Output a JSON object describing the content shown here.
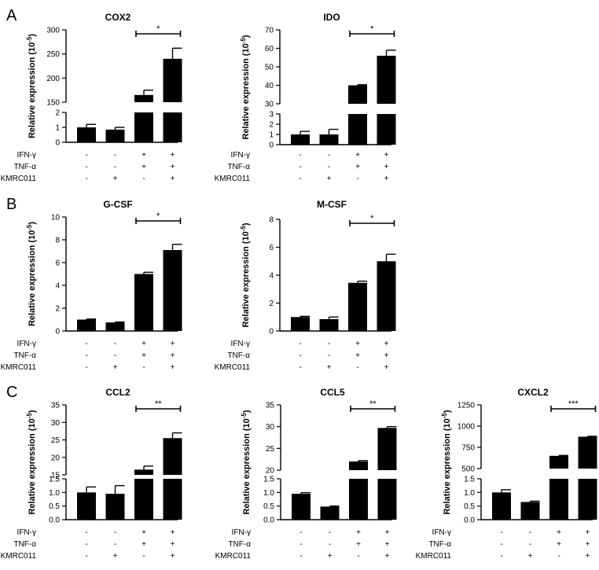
{
  "figure": {
    "sample_labels": [
      "IFN-γ",
      "TNF-α",
      "KMRC011"
    ],
    "conditions": [
      [
        "-",
        "-",
        "-"
      ],
      [
        "-",
        "-",
        "+"
      ],
      [
        "+",
        "+",
        "-"
      ],
      [
        "+",
        "+",
        "+"
      ]
    ],
    "panels": [
      {
        "letter": "A"
      },
      {
        "letter": "B"
      },
      {
        "letter": "C"
      }
    ],
    "ylabel_text": "Relative expression (10",
    "ylabel_exp": "-5",
    "ylabel_close": ")"
  },
  "chart_data": [
    {
      "type": "bar",
      "panel": "A",
      "title": "COX2",
      "categories": [
        "control",
        "KMRC011",
        "IFN-γ+TNF-α",
        "IFN-γ+TNF-α+KMRC011"
      ],
      "values": [
        1.0,
        0.85,
        165,
        240
      ],
      "errors": [
        0.2,
        0.15,
        10,
        22
      ],
      "ylabel": "Relative expression (10-5)",
      "split_axis": true,
      "segments": [
        {
          "range": [
            0,
            2
          ],
          "ticks": [
            "0",
            "1",
            "2"
          ]
        },
        {
          "range": [
            150,
            300
          ],
          "ticks": [
            "150",
            "200",
            "250",
            "300"
          ]
        }
      ],
      "significance": {
        "between": [
          2,
          3
        ],
        "label": "*"
      }
    },
    {
      "type": "bar",
      "panel": "A",
      "title": "IDO",
      "categories": [
        "control",
        "KMRC011",
        "IFN-γ+TNF-α",
        "IFN-γ+TNF-α+KMRC011"
      ],
      "values": [
        1.0,
        1.0,
        40,
        56
      ],
      "errors": [
        0.3,
        0.5,
        0.3,
        3
      ],
      "ylabel": "Relative expression (10-5)",
      "split_axis": true,
      "segments": [
        {
          "range": [
            0,
            3
          ],
          "ticks": [
            "0",
            "1",
            "2",
            "3"
          ]
        },
        {
          "range": [
            30,
            70
          ],
          "ticks": [
            "30",
            "40",
            "50",
            "60",
            "70"
          ]
        }
      ],
      "significance": {
        "between": [
          2,
          3
        ],
        "label": "*"
      }
    },
    {
      "type": "bar",
      "panel": "B",
      "title": "G-CSF",
      "categories": [
        "control",
        "KMRC011",
        "IFN-γ+TNF-α",
        "IFN-γ+TNF-α+KMRC011"
      ],
      "values": [
        1.0,
        0.75,
        5.0,
        7.1
      ],
      "errors": [
        0.05,
        0.04,
        0.15,
        0.5
      ],
      "ylabel": "Relative expression (10-5)",
      "split_axis": false,
      "segments": [
        {
          "range": [
            0,
            10
          ],
          "ticks": [
            "0",
            "2",
            "4",
            "6",
            "8",
            "10"
          ]
        }
      ],
      "significance": {
        "between": [
          2,
          3
        ],
        "label": "*"
      }
    },
    {
      "type": "bar",
      "panel": "B",
      "title": "M-CSF",
      "categories": [
        "control",
        "KMRC011",
        "IFN-γ+TNF-α",
        "IFN-γ+TNF-α+KMRC011"
      ],
      "values": [
        1.0,
        0.85,
        3.45,
        5.0
      ],
      "errors": [
        0.05,
        0.15,
        0.12,
        0.5
      ],
      "ylabel": "Relative expression (10-5)",
      "split_axis": false,
      "segments": [
        {
          "range": [
            0,
            8
          ],
          "ticks": [
            "0",
            "2",
            "4",
            "6",
            "8"
          ]
        }
      ],
      "significance": {
        "between": [
          2,
          3
        ],
        "label": "*"
      }
    },
    {
      "type": "bar",
      "panel": "C",
      "title": "CCL2",
      "categories": [
        "control",
        "KMRC011",
        "IFN-γ+TNF-α",
        "IFN-γ+TNF-α+KMRC011"
      ],
      "values": [
        1.0,
        0.95,
        16.5,
        25.5
      ],
      "errors": [
        0.2,
        0.3,
        1,
        1.5
      ],
      "ylabel": "Relative expression (10-5)",
      "split_axis": true,
      "segments": [
        {
          "range": [
            0,
            1.5
          ],
          "ticks": [
            "0.0",
            "0.5",
            "1.0",
            "1.5"
          ]
        },
        {
          "range": [
            15,
            35
          ],
          "ticks": [
            "15",
            "20",
            "25",
            "30",
            "35"
          ]
        }
      ],
      "significance": {
        "between": [
          2,
          3
        ],
        "label": "**"
      }
    },
    {
      "type": "bar",
      "panel": "C",
      "title": "CCL5",
      "categories": [
        "control",
        "KMRC011",
        "IFN-γ+TNF-α",
        "IFN-γ+TNF-α+KMRC011"
      ],
      "values": [
        0.95,
        0.48,
        22,
        29.7
      ],
      "errors": [
        0.04,
        0.02,
        0.2,
        0.3
      ],
      "ylabel": "Relative expression (10-5)",
      "split_axis": true,
      "segments": [
        {
          "range": [
            0,
            1.5
          ],
          "ticks": [
            "0.0",
            "0.5",
            "1.0",
            "1.5"
          ]
        },
        {
          "range": [
            20,
            35
          ],
          "ticks": [
            "20",
            "25",
            "30",
            "35"
          ]
        }
      ],
      "significance": {
        "between": [
          2,
          3
        ],
        "label": "**"
      }
    },
    {
      "type": "bar",
      "panel": "C",
      "title": "CXCL2",
      "categories": [
        "control",
        "KMRC011",
        "IFN-γ+TNF-α",
        "IFN-γ+TNF-α+KMRC011"
      ],
      "values": [
        1.0,
        0.65,
        650,
        875
      ],
      "errors": [
        0.1,
        0.03,
        5,
        5
      ],
      "ylabel": "Relative expression (10-5)",
      "split_axis": true,
      "segments": [
        {
          "range": [
            0,
            1.5
          ],
          "ticks": [
            "0.0",
            "0.5",
            "1.0",
            "1.5"
          ]
        },
        {
          "range": [
            500,
            1250
          ],
          "ticks": [
            "500",
            "750",
            "1000",
            "1250"
          ]
        }
      ],
      "significance": {
        "between": [
          2,
          3
        ],
        "label": "***"
      }
    }
  ]
}
